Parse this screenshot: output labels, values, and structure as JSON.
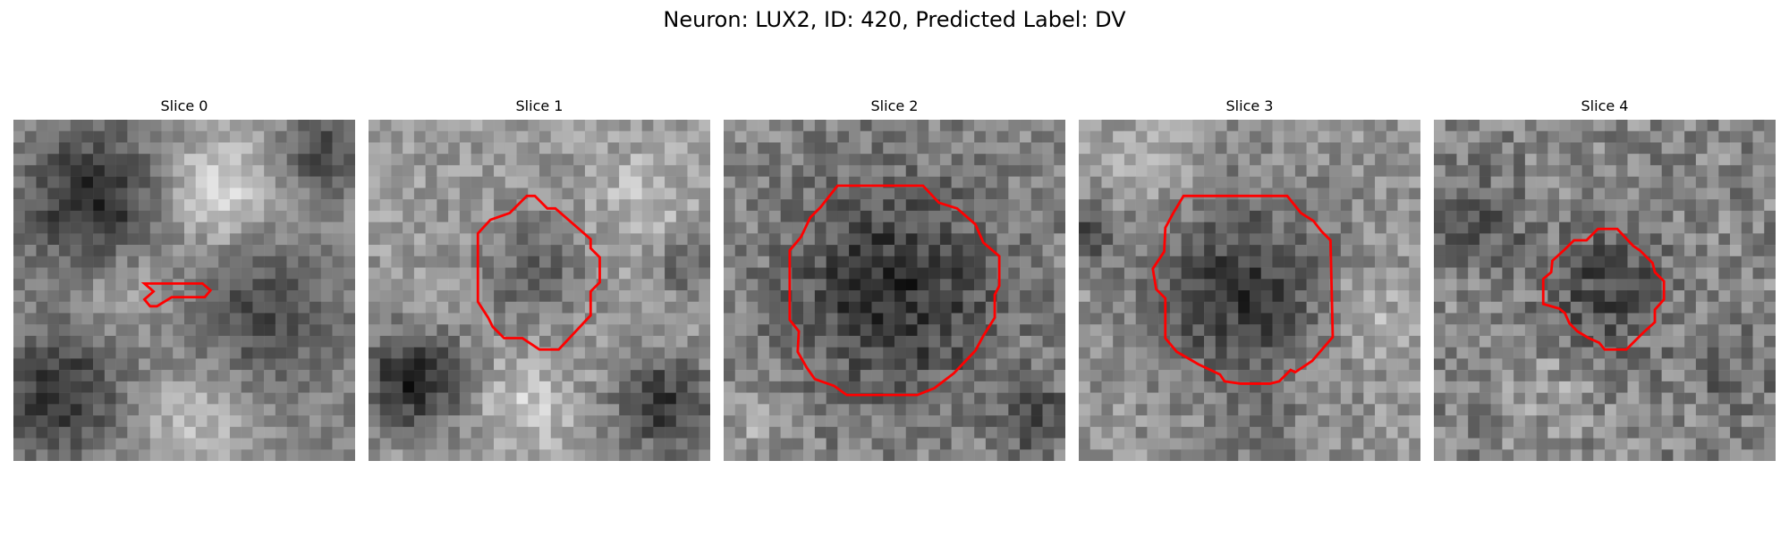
{
  "figure": {
    "title": "Neuron: LUX2, ID: 420, Predicted Label: DV"
  },
  "colors": {
    "background": "#ffffff",
    "contour": "#ff0000",
    "colormap": "grayscale"
  },
  "slices": [
    {
      "label": "Slice 0"
    },
    {
      "label": "Slice 1"
    },
    {
      "label": "Slice 2"
    },
    {
      "label": "Slice 3"
    },
    {
      "label": "Slice 4"
    }
  ]
}
